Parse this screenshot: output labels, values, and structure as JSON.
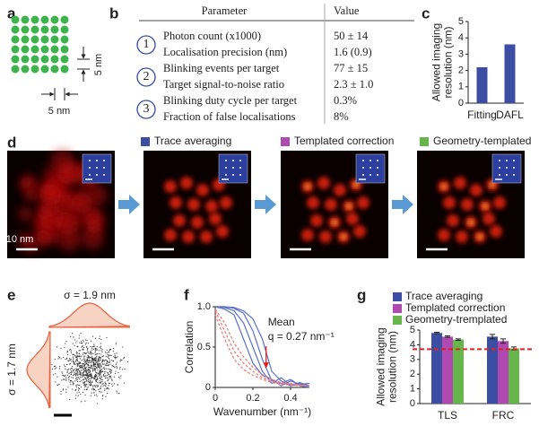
{
  "panel_labels": [
    "a",
    "b",
    "c",
    "d",
    "e",
    "f",
    "g"
  ],
  "panel_a": {
    "spacing_x": "5 nm",
    "spacing_y": "5 nm"
  },
  "table_b": {
    "header": [
      "Parameter",
      "Value"
    ],
    "rows": [
      {
        "number": "1",
        "parameter": "Photon count (x1000)",
        "value": "50 ± 14"
      },
      {
        "parameter": "Localisation precision (nm)",
        "value": "1.6 (0.9)"
      },
      {
        "number": "2",
        "parameter": "Blinking events per target",
        "value": "77 ± 15"
      },
      {
        "parameter": "Target signal-to-noise ratio",
        "value": "2.3 ± 1.0"
      },
      {
        "number": "3",
        "parameter": "Blinking duty cycle per target",
        "value": "0.3%"
      },
      {
        "parameter": "Fraction of false localisations",
        "value": "8%"
      }
    ]
  },
  "panel_d": {
    "legend": [
      {
        "name": "Trace averaging",
        "color": "#3c4ea3"
      },
      {
        "name": "Templated correction",
        "color": "#b04ab0"
      },
      {
        "name": "Geometry-templated",
        "color": "#67b64b"
      }
    ],
    "scale_label": "10 nm"
  },
  "panel_e": {
    "sigma_x": "σ = 1.9 nm",
    "sigma_y": "σ = 1.7 nm"
  },
  "chart_data": [
    {
      "type": "bar",
      "ylabel": [
        "Allowed imaging",
        "resolution (nm)"
      ],
      "categories": [
        "Fitting",
        "DAFL"
      ],
      "values": [
        2.2,
        3.6
      ],
      "color": "#3c4ea3",
      "ylim": [
        0,
        5
      ],
      "yticks": [
        0,
        1,
        2,
        3,
        4,
        5
      ]
    },
    {
      "type": "line",
      "ylabel": "Correlation",
      "xlabel": "Wavenumber (nm⁻¹)",
      "x": [
        0,
        0.05,
        0.1,
        0.15,
        0.2,
        0.25,
        0.3,
        0.35,
        0.4,
        0.45,
        0.5
      ],
      "series": [
        {
          "color": "#5b6fc4",
          "style": "solid",
          "values": [
            1,
            1,
            0.98,
            0.92,
            0.7,
            0.35,
            0.08,
            0.05,
            0.1,
            0.02,
            0
          ]
        },
        {
          "color": "#5b6fc4",
          "style": "solid",
          "values": [
            1,
            0.99,
            0.95,
            0.8,
            0.5,
            0.2,
            0.05,
            0.12,
            0.03,
            0.06,
            0.02
          ]
        },
        {
          "color": "#5b6fc4",
          "style": "solid",
          "values": [
            1,
            0.97,
            0.9,
            0.6,
            0.3,
            0.15,
            0.1,
            0.02,
            0.08,
            0.04,
            0.05
          ]
        },
        {
          "color": "#5b6fc4",
          "style": "solid",
          "values": [
            1,
            1,
            0.99,
            0.95,
            0.85,
            0.6,
            0.2,
            0.08,
            0.02,
            0.05,
            0
          ]
        },
        {
          "color": "#ee7777",
          "style": "dashed",
          "values": [
            0.95,
            0.7,
            0.45,
            0.3,
            0.2,
            0.12,
            0.08,
            0.05,
            0.05,
            0.03,
            0.02
          ]
        },
        {
          "color": "#ee7777",
          "style": "dashed",
          "values": [
            0.9,
            0.6,
            0.35,
            0.22,
            0.15,
            0.1,
            0.06,
            0.04,
            0.03,
            0.02,
            0.02
          ]
        },
        {
          "color": "#ee7777",
          "style": "dashed",
          "values": [
            0.97,
            0.8,
            0.55,
            0.38,
            0.25,
            0.16,
            0.1,
            0.06,
            0.04,
            0.03,
            0.02
          ]
        }
      ],
      "annotation": {
        "text": [
          "Mean",
          "q = 0.27 nm⁻¹"
        ],
        "x": 0.27,
        "color": "#e02020"
      },
      "xlim": [
        0,
        0.5
      ],
      "xticks": [
        0,
        0.2,
        0.4
      ],
      "ylim": [
        0,
        1
      ],
      "yticks": [
        0,
        0.5,
        {
          "value": 1,
          "label": "1.0"
        }
      ]
    },
    {
      "type": "grouped_bar",
      "ylabel": [
        "Allowed imaging",
        "resolution (nm)"
      ],
      "categories": [
        "TLS",
        "FRC"
      ],
      "series": [
        {
          "name": "Trace averaging",
          "color": "#3c4ea3",
          "values": [
            4.8,
            4.55
          ],
          "errors": [
            0.05,
            0.15
          ]
        },
        {
          "name": "Templated correction",
          "color": "#b04ab0",
          "values": [
            4.55,
            4.25
          ],
          "errors": [
            0.05,
            0.15
          ]
        },
        {
          "name": "Geometry-tremplated",
          "color": "#67b64b",
          "values": [
            4.35,
            3.75
          ],
          "errors": [
            0.05,
            0.1
          ]
        }
      ],
      "threshold": 3.7,
      "threshold_color": "#e02020",
      "ylim": [
        0,
        5
      ],
      "yticks": [
        0,
        1,
        2,
        3,
        4,
        5
      ]
    }
  ]
}
